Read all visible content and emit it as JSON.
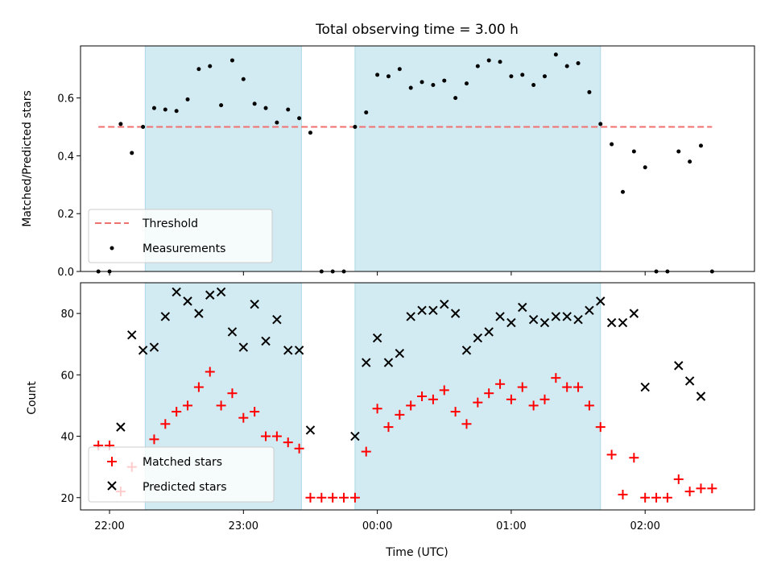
{
  "chart_data": [
    {
      "type": "scatter",
      "title": "Total observing time = 3.00 h",
      "xlabel": "",
      "ylabel": "Matched/Predicted stars",
      "xlim": [
        "21:47",
        "02:49"
      ],
      "ylim": [
        0,
        0.78
      ],
      "yticks": [
        0.0,
        0.2,
        0.4,
        0.6
      ],
      "ytick_labels": [
        "0.0",
        "0.2",
        "0.4",
        "0.6"
      ],
      "shaded_intervals": [
        [
          "22:16",
          "23:26"
        ],
        [
          "23:50",
          "01:40"
        ]
      ],
      "threshold": {
        "name": "Threshold",
        "value": 0.5,
        "x_start": "21:55",
        "x_end": "02:30",
        "color": "#f07070",
        "style": "dashed"
      },
      "series": [
        {
          "name": "Measurements",
          "marker": "dot",
          "color": "#000000",
          "points": [
            [
              "21:55",
              0.0
            ],
            [
              "22:00",
              0.0
            ],
            [
              "22:05",
              0.51
            ],
            [
              "22:10",
              0.41
            ],
            [
              "22:15",
              0.5
            ],
            [
              "22:20",
              0.565
            ],
            [
              "22:25",
              0.56
            ],
            [
              "22:30",
              0.555
            ],
            [
              "22:35",
              0.595
            ],
            [
              "22:40",
              0.7
            ],
            [
              "22:45",
              0.71
            ],
            [
              "22:50",
              0.575
            ],
            [
              "22:55",
              0.73
            ],
            [
              "23:00",
              0.665
            ],
            [
              "23:05",
              0.58
            ],
            [
              "23:10",
              0.565
            ],
            [
              "23:15",
              0.515
            ],
            [
              "23:20",
              0.56
            ],
            [
              "23:25",
              0.53
            ],
            [
              "23:30",
              0.48
            ],
            [
              "23:35",
              0.0
            ],
            [
              "23:40",
              0.0
            ],
            [
              "23:45",
              0.0
            ],
            [
              "23:50",
              0.5
            ],
            [
              "23:55",
              0.55
            ],
            [
              "00:00",
              0.68
            ],
            [
              "00:05",
              0.675
            ],
            [
              "00:10",
              0.7
            ],
            [
              "00:15",
              0.635
            ],
            [
              "00:20",
              0.655
            ],
            [
              "00:25",
              0.645
            ],
            [
              "00:30",
              0.66
            ],
            [
              "00:35",
              0.6
            ],
            [
              "00:40",
              0.65
            ],
            [
              "00:45",
              0.71
            ],
            [
              "00:50",
              0.73
            ],
            [
              "00:55",
              0.725
            ],
            [
              "01:00",
              0.675
            ],
            [
              "01:05",
              0.68
            ],
            [
              "01:10",
              0.645
            ],
            [
              "01:15",
              0.675
            ],
            [
              "01:20",
              0.75
            ],
            [
              "01:25",
              0.71
            ],
            [
              "01:30",
              0.72
            ],
            [
              "01:35",
              0.62
            ],
            [
              "01:40",
              0.51
            ],
            [
              "01:45",
              0.44
            ],
            [
              "01:50",
              0.275
            ],
            [
              "01:55",
              0.415
            ],
            [
              "02:00",
              0.36
            ],
            [
              "02:05",
              0.0
            ],
            [
              "02:10",
              0.0
            ],
            [
              "02:15",
              0.415
            ],
            [
              "02:20",
              0.38
            ],
            [
              "02:25",
              0.435
            ],
            [
              "02:30",
              0.0
            ]
          ]
        }
      ],
      "legend": {
        "position": "lower-left",
        "entries": [
          "Threshold",
          "Measurements"
        ]
      }
    },
    {
      "type": "scatter",
      "title": "",
      "xlabel": "Time (UTC)",
      "ylabel": "Count",
      "xlim": [
        "21:47",
        "02:49"
      ],
      "ylim": [
        16,
        90
      ],
      "yticks": [
        20,
        40,
        60,
        80
      ],
      "ytick_labels": [
        "20",
        "40",
        "60",
        "80"
      ],
      "xticks": [
        "22:00",
        "23:00",
        "00:00",
        "01:00",
        "02:00"
      ],
      "xtick_labels": [
        "22:00",
        "23:00",
        "00:00",
        "01:00",
        "02:00"
      ],
      "shaded_intervals": [
        [
          "22:16",
          "23:26"
        ],
        [
          "23:50",
          "01:40"
        ]
      ],
      "series": [
        {
          "name": "Matched stars",
          "marker": "plus",
          "color": "#ff0000",
          "points": [
            [
              "21:55",
              37
            ],
            [
              "22:00",
              37
            ],
            [
              "22:05",
              22
            ],
            [
              "22:10",
              30
            ],
            [
              "22:20",
              39
            ],
            [
              "22:25",
              44
            ],
            [
              "22:30",
              48
            ],
            [
              "22:35",
              50
            ],
            [
              "22:40",
              56
            ],
            [
              "22:45",
              61
            ],
            [
              "22:50",
              50
            ],
            [
              "22:55",
              54
            ],
            [
              "23:00",
              46
            ],
            [
              "23:05",
              48
            ],
            [
              "23:10",
              40
            ],
            [
              "23:15",
              40
            ],
            [
              "23:20",
              38
            ],
            [
              "23:25",
              36
            ],
            [
              "23:30",
              20
            ],
            [
              "23:35",
              20
            ],
            [
              "23:40",
              20
            ],
            [
              "23:45",
              20
            ],
            [
              "23:50",
              20
            ],
            [
              "23:55",
              35
            ],
            [
              "00:00",
              49
            ],
            [
              "00:05",
              43
            ],
            [
              "00:10",
              47
            ],
            [
              "00:15",
              50
            ],
            [
              "00:20",
              53
            ],
            [
              "00:25",
              52
            ],
            [
              "00:30",
              55
            ],
            [
              "00:35",
              48
            ],
            [
              "00:40",
              44
            ],
            [
              "00:45",
              51
            ],
            [
              "00:50",
              54
            ],
            [
              "00:55",
              57
            ],
            [
              "01:00",
              52
            ],
            [
              "01:05",
              56
            ],
            [
              "01:10",
              50
            ],
            [
              "01:15",
              52
            ],
            [
              "01:20",
              59
            ],
            [
              "01:25",
              56
            ],
            [
              "01:30",
              56
            ],
            [
              "01:35",
              50
            ],
            [
              "01:40",
              43
            ],
            [
              "01:45",
              34
            ],
            [
              "01:50",
              21
            ],
            [
              "01:55",
              33
            ],
            [
              "02:00",
              20
            ],
            [
              "02:05",
              20
            ],
            [
              "02:10",
              20
            ],
            [
              "02:15",
              26
            ],
            [
              "02:20",
              22
            ],
            [
              "02:25",
              23
            ],
            [
              "02:30",
              23
            ]
          ]
        },
        {
          "name": "Predicted stars",
          "marker": "x",
          "color": "#000000",
          "points": [
            [
              "22:05",
              43
            ],
            [
              "22:10",
              73
            ],
            [
              "22:15",
              68
            ],
            [
              "22:20",
              69
            ],
            [
              "22:25",
              79
            ],
            [
              "22:30",
              87
            ],
            [
              "22:35",
              84
            ],
            [
              "22:40",
              80
            ],
            [
              "22:45",
              86
            ],
            [
              "22:50",
              87
            ],
            [
              "22:55",
              74
            ],
            [
              "23:00",
              69
            ],
            [
              "23:05",
              83
            ],
            [
              "23:10",
              71
            ],
            [
              "23:15",
              78
            ],
            [
              "23:20",
              68
            ],
            [
              "23:25",
              68
            ],
            [
              "23:30",
              42
            ],
            [
              "23:50",
              40
            ],
            [
              "23:55",
              64
            ],
            [
              "00:00",
              72
            ],
            [
              "00:05",
              64
            ],
            [
              "00:10",
              67
            ],
            [
              "00:15",
              79
            ],
            [
              "00:20",
              81
            ],
            [
              "00:25",
              81
            ],
            [
              "00:30",
              83
            ],
            [
              "00:35",
              80
            ],
            [
              "00:40",
              68
            ],
            [
              "00:45",
              72
            ],
            [
              "00:50",
              74
            ],
            [
              "00:55",
              79
            ],
            [
              "01:00",
              77
            ],
            [
              "01:05",
              82
            ],
            [
              "01:10",
              78
            ],
            [
              "01:15",
              77
            ],
            [
              "01:20",
              79
            ],
            [
              "01:25",
              79
            ],
            [
              "01:30",
              78
            ],
            [
              "01:35",
              81
            ],
            [
              "01:40",
              84
            ],
            [
              "01:45",
              77
            ],
            [
              "01:50",
              77
            ],
            [
              "01:55",
              80
            ],
            [
              "02:00",
              56
            ],
            [
              "02:15",
              63
            ],
            [
              "02:20",
              58
            ],
            [
              "02:25",
              53
            ]
          ]
        }
      ],
      "legend": {
        "position": "lower-left",
        "entries": [
          "Matched stars",
          "Predicted stars"
        ]
      }
    }
  ],
  "colors": {
    "shade": "#add8e6",
    "threshold": "#f07070",
    "matched": "#ff0000",
    "predicted": "#000000",
    "measurement": "#000000"
  }
}
